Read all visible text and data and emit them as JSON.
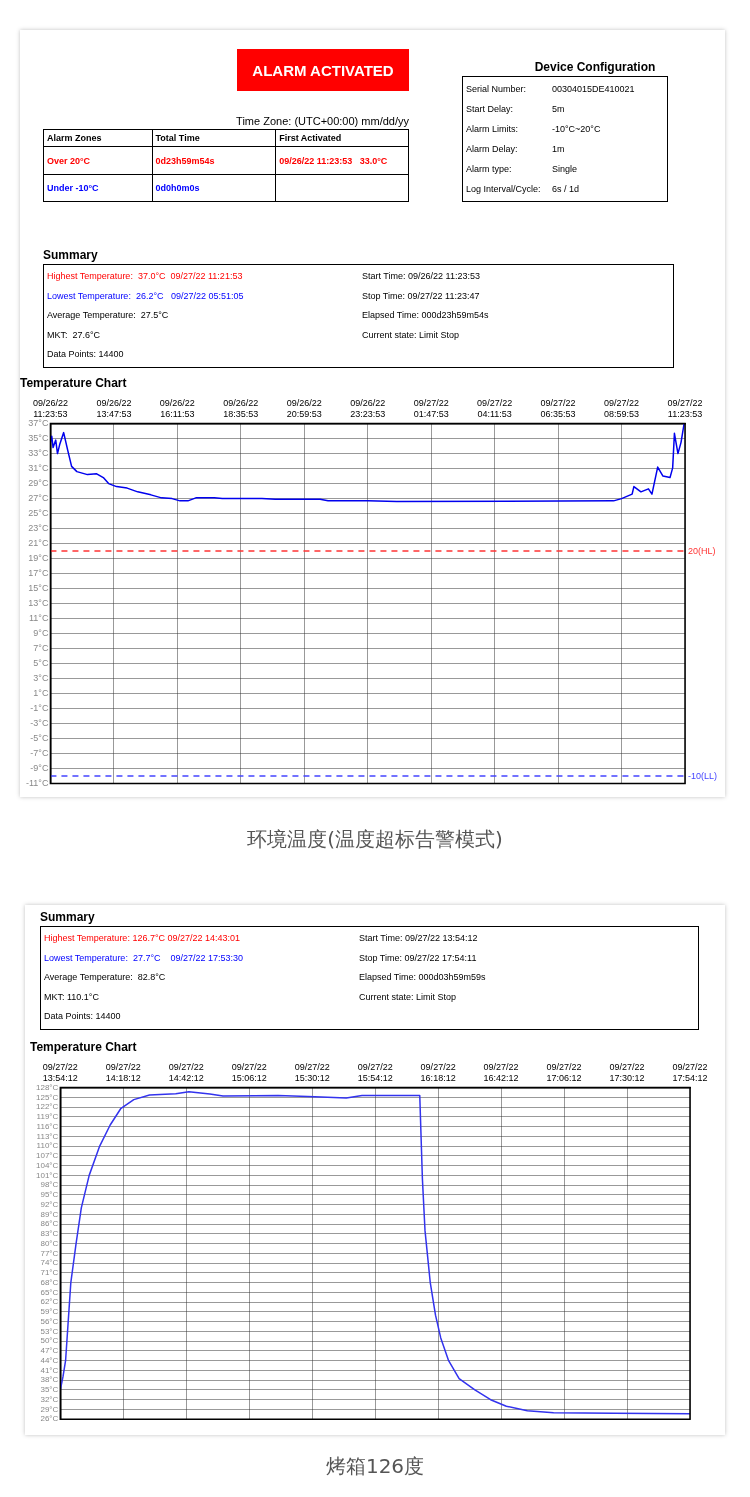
{
  "chart_data": [
    {
      "type": "other",
      "title": "ALARM ACTIVATED",
      "subtitle": "Time Zone: (UTC+00:00) mm/dd/yy",
      "annotations": [
        "Alarm Zones",
        "Total Time",
        "First Activated",
        "Over 20°C",
        "0d23h59m54s",
        "09/26/22 11:23:53   33.0°C",
        "Under -10°C",
        "0d0h0m0s"
      ]
    },
    {
      "type": "other",
      "title": "Device Configuration",
      "annotations": [
        "Serial Number:",
        "00304015DE410021",
        "Start Delay:",
        "5m",
        "Alarm Limits:",
        "-10°C~20°C",
        "Alarm Delay:",
        "1m",
        "Alarm type:",
        "Single",
        "Log Interval/Cycle:",
        "6s / 1d"
      ]
    },
    {
      "type": "other",
      "title": "Summary",
      "annotations": [
        "Highest Temperature:  37.0°C  09/27/22 11:21:53",
        "Lowest Temperature:  26.2°C   09/27/22 05:51:05",
        "Average Temperature:  27.5°C",
        "MKT:  27.6°C",
        "Data Points: 14400",
        "Start Time: 09/26/22 11:23:53",
        "Stop Time: 09/27/22 11:23:47",
        "Elapsed Time: 000d23h59m54s",
        "Current state: Limit Stop"
      ]
    },
    {
      "type": "line",
      "title": "Temperature Chart",
      "annotations": [
        "环境温度(温度超标告警模式)"
      ],
      "grid": true,
      "xlim": [
        "--09-26T11:23",
        "--09-27T11:23"
      ],
      "xticks": [
        {
          "value": "--09-26T11:23",
          "label": "09/26/22 11:23:53"
        },
        {
          "value": "--09-26T13:47",
          "label": "09/26/22 13:47:53"
        },
        {
          "value": "--09-26T16:11",
          "label": "09/26/22 16:11:53"
        },
        {
          "value": "--09-26T18:35",
          "label": "09/26/22 18:35:53"
        },
        {
          "value": "--09-26T20:59",
          "label": "09/26/22 20:59:53"
        },
        {
          "value": "--09-26T23:23",
          "label": "09/26/22 23:23:53"
        },
        {
          "value": "--09-27T01:47",
          "label": "09/27/22 01:47:53"
        },
        {
          "value": "--09-27T04:11",
          "label": "09/27/22 04:11:53"
        },
        {
          "value": "--09-27T06:35",
          "label": "09/27/22 06:35:53"
        },
        {
          "value": "--09-27T08:59",
          "label": "09/27/22 08:59:53"
        },
        {
          "value": "--09-27T11:23",
          "label": "09/27/22 11:23:53"
        }
      ],
      "ylim": [
        -11,
        37
      ],
      "yticks": [
        {
          "value": -11,
          "label": "-11°C"
        },
        {
          "value": -9,
          "label": "-9°C"
        },
        {
          "value": -7,
          "label": "-7°C"
        },
        {
          "value": -5,
          "label": "-5°C"
        },
        {
          "value": -3,
          "label": "-3°C"
        },
        {
          "value": -1,
          "label": "-1°C"
        },
        {
          "value": 1,
          "label": "1°C"
        },
        {
          "value": 3,
          "label": "3°C"
        },
        {
          "value": 5,
          "label": "5°C"
        },
        {
          "value": 7,
          "label": "7°C"
        },
        {
          "value": 9,
          "label": "9°C"
        },
        {
          "value": 11,
          "label": "11°C"
        },
        {
          "value": 13,
          "label": "13°C"
        },
        {
          "value": 15,
          "label": "15°C"
        },
        {
          "value": 17,
          "label": "17°C"
        },
        {
          "value": 19,
          "label": "19°C"
        },
        {
          "value": 21,
          "label": "21°C"
        },
        {
          "value": 23,
          "label": "23°C"
        },
        {
          "value": 25,
          "label": "25°C"
        },
        {
          "value": 27,
          "label": "27°C"
        },
        {
          "value": 29,
          "label": "29°C"
        },
        {
          "value": 31,
          "label": "31°C"
        },
        {
          "value": 33,
          "label": "33°C"
        },
        {
          "value": 35,
          "label": "35°C"
        },
        {
          "value": 37,
          "label": "37°C"
        }
      ],
      "ref_lines": [
        {
          "axis": "y",
          "value": 20,
          "label": "20(HL)",
          "color": "#ff3333",
          "line_style": "dashed"
        },
        {
          "axis": "y",
          "value": -10,
          "label": "-10(LL)",
          "color": "#4444ff",
          "line_style": "dashed"
        }
      ],
      "series": [
        {
          "color": "#0000ee",
          "x": [
            "--09-26T11:23",
            "--09-26T11:26",
            "--09-26T11:29",
            "--09-26T11:35",
            "--09-26T11:39",
            "--09-26T11:44",
            "--09-26T11:53",
            "--09-26T12:02",
            "--09-26T12:11",
            "--09-26T12:23",
            "--09-26T12:47",
            "--09-26T13:08",
            "--09-26T13:23",
            "--09-26T13:35",
            "--09-26T13:53",
            "--09-26T14:17",
            "--09-26T14:41",
            "--09-26T15:11",
            "--09-26T15:35",
            "--09-26T15:59",
            "--09-26T16:17",
            "--09-26T16:35",
            "--09-26T16:53",
            "--09-26T17:35",
            "--09-26T17:53",
            "--09-26T19:23",
            "--09-26T19:53",
            "--09-26T21:35",
            "--09-26T21:53",
            "--09-26T23:23",
            "--09-27T00:29",
            "--09-27T08:41",
            "--09-27T08:59",
            "--09-27T09:23",
            "--09-27T09:27",
            "--09-27T09:43",
            "--09-27T10:00",
            "--09-27T10:08",
            "--09-27T10:21",
            "--09-27T10:33",
            "--09-27T10:49",
            "--09-27T10:55",
            "--09-27T10:59",
            "--09-27T11:07",
            "--09-27T11:14",
            "--09-27T11:21"
          ],
          "values": [
            34.5,
            35.3,
            33.8,
            34.8,
            33.0,
            34.2,
            35.8,
            33.5,
            31.3,
            30.6,
            30.2,
            30.3,
            29.8,
            29.0,
            28.6,
            28.4,
            27.9,
            27.5,
            27.1,
            27.0,
            26.7,
            26.7,
            27.1,
            27.1,
            27.0,
            27.0,
            26.9,
            26.9,
            26.7,
            26.7,
            26.6,
            26.7,
            27.0,
            27.6,
            28.6,
            27.9,
            28.3,
            27.6,
            31.2,
            30.0,
            29.8,
            31.1,
            35.7,
            33.0,
            34.5,
            37.0
          ]
        }
      ]
    },
    {
      "type": "other",
      "title": "Summary",
      "annotations": [
        "Highest Temperature: 126.7°C 09/27/22 14:43:01",
        "Lowest Temperature:  27.7°C    09/27/22 17:53:30",
        "Average Temperature:  82.8°C",
        "MKT: 110.1°C",
        "Data Points: 14400",
        "Start Time: 09/27/22 13:54:12",
        "Stop Time: 09/27/22 17:54:11",
        "Elapsed Time: 000d03h59m59s",
        "Current state: Limit Stop"
      ]
    },
    {
      "type": "line",
      "title": "Temperature Chart",
      "annotations": [
        "烤箱126度"
      ],
      "grid": true,
      "xlim": [
        "--09-27T13:54",
        "--09-27T17:54"
      ],
      "xticks": [
        {
          "value": "--09-27T13:54",
          "label": "09/27/22 13:54:12"
        },
        {
          "value": "--09-27T14:18",
          "label": "09/27/22 14:18:12"
        },
        {
          "value": "--09-27T14:42",
          "label": "09/27/22 14:42:12"
        },
        {
          "value": "--09-27T15:06",
          "label": "09/27/22 15:06:12"
        },
        {
          "value": "--09-27T15:30",
          "label": "09/27/22 15:30:12"
        },
        {
          "value": "--09-27T15:54",
          "label": "09/27/22 15:54:12"
        },
        {
          "value": "--09-27T16:18",
          "label": "09/27/22 16:18:12"
        },
        {
          "value": "--09-27T16:42",
          "label": "09/27/22 16:42:12"
        },
        {
          "value": "--09-27T17:06",
          "label": "09/27/22 17:06:12"
        },
        {
          "value": "--09-27T17:30",
          "label": "09/27/22 17:30:12"
        },
        {
          "value": "--09-27T17:54",
          "label": "09/27/22 17:54:12"
        }
      ],
      "ylim": [
        26,
        128
      ],
      "yticks": [
        {
          "value": 26,
          "label": "26°C"
        },
        {
          "value": 29,
          "label": "29°C"
        },
        {
          "value": 32,
          "label": "32°C"
        },
        {
          "value": 35,
          "label": "35°C"
        },
        {
          "value": 38,
          "label": "38°C"
        },
        {
          "value": 41,
          "label": "41°C"
        },
        {
          "value": 44,
          "label": "44°C"
        },
        {
          "value": 47,
          "label": "47°C"
        },
        {
          "value": 50,
          "label": "50°C"
        },
        {
          "value": 53,
          "label": "53°C"
        },
        {
          "value": 56,
          "label": "56°C"
        },
        {
          "value": 59,
          "label": "59°C"
        },
        {
          "value": 62,
          "label": "62°C"
        },
        {
          "value": 65,
          "label": "65°C"
        },
        {
          "value": 68,
          "label": "68°C"
        },
        {
          "value": 71,
          "label": "71°C"
        },
        {
          "value": 74,
          "label": "74°C"
        },
        {
          "value": 77,
          "label": "77°C"
        },
        {
          "value": 80,
          "label": "80°C"
        },
        {
          "value": 83,
          "label": "83°C"
        },
        {
          "value": 86,
          "label": "86°C"
        },
        {
          "value": 89,
          "label": "89°C"
        },
        {
          "value": 92,
          "label": "92°C"
        },
        {
          "value": 95,
          "label": "95°C"
        },
        {
          "value": 98,
          "label": "98°C"
        },
        {
          "value": 101,
          "label": "101°C"
        },
        {
          "value": 104,
          "label": "104°C"
        },
        {
          "value": 107,
          "label": "107°C"
        },
        {
          "value": 110,
          "label": "110°C"
        },
        {
          "value": 113,
          "label": "113°C"
        },
        {
          "value": 116,
          "label": "116°C"
        },
        {
          "value": 119,
          "label": "119°C"
        },
        {
          "value": 122,
          "label": "122°C"
        },
        {
          "value": 125,
          "label": "125°C"
        },
        {
          "value": 128,
          "label": "128°C"
        }
      ],
      "series": [
        {
          "color": "#3333ee",
          "x": [
            "--09-27T13:54",
            "--09-27T13:55",
            "--09-27T13:56",
            "--09-27T13:57",
            "--09-27T13:58",
            "--09-27T14:00",
            "--09-27T14:02",
            "--09-27T14:05",
            "--09-27T14:09",
            "--09-27T14:13",
            "--09-27T14:17",
            "--09-27T14:22",
            "--09-27T14:28",
            "--09-27T14:38",
            "--09-27T14:43",
            "--09-27T14:51",
            "--09-27T14:56",
            "--09-27T15:17",
            "--09-27T15:31",
            "--09-27T15:43",
            "--09-27T15:49",
            "--09-27T16:11",
            "--09-27T16:12",
            "--09-27T16:13",
            "--09-27T16:14",
            "--09-27T16:15",
            "--09-27T16:17",
            "--09-27T16:19",
            "--09-27T16:22",
            "--09-27T16:26",
            "--09-27T16:32",
            "--09-27T16:38",
            "--09-27T16:44",
            "--09-27T16:52",
            "--09-27T17:02",
            "--09-27T17:25",
            "--09-27T17:54"
          ],
          "values": [
            35,
            39,
            44,
            56,
            68,
            80,
            91,
            101,
            110,
            116.5,
            121.5,
            124.3,
            125.7,
            126.1,
            126.7,
            126.0,
            125.4,
            125.6,
            125.2,
            124.8,
            125.6,
            125.6,
            100,
            84,
            76,
            68,
            58,
            51,
            44,
            38.5,
            35,
            32,
            30,
            28.6,
            28,
            27.8,
            27.7
          ]
        }
      ]
    }
  ]
}
